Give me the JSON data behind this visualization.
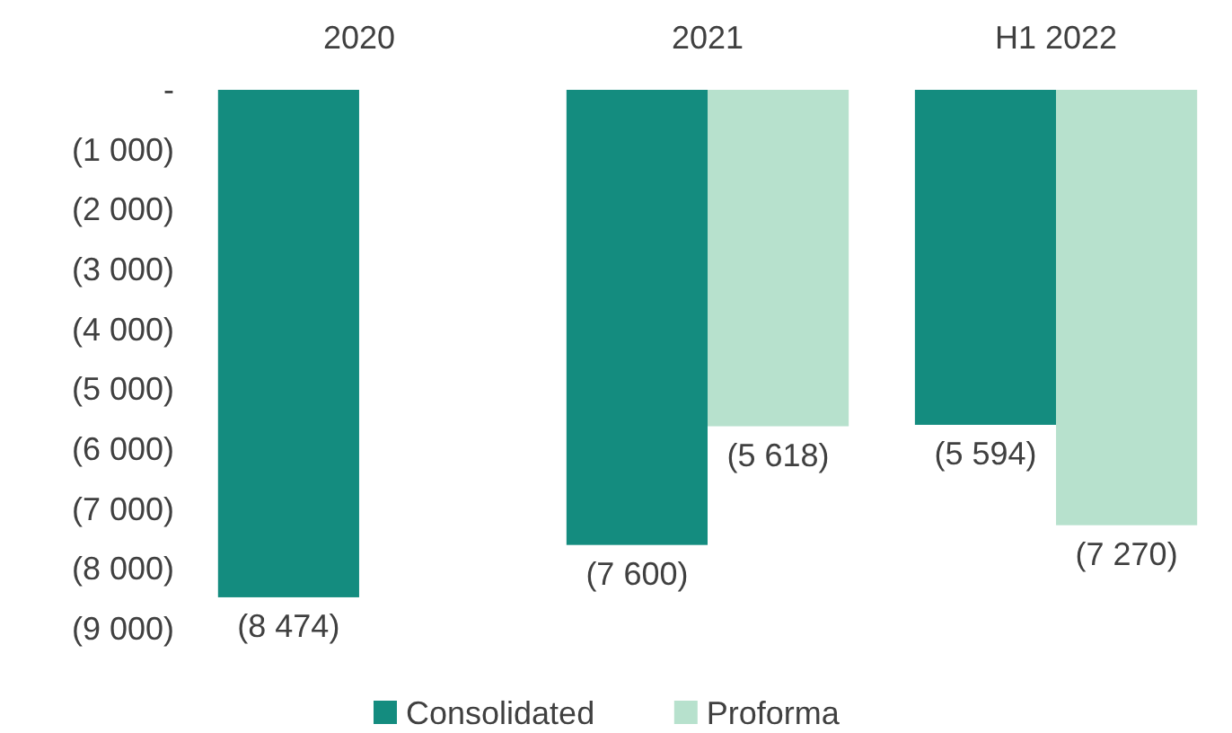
{
  "chart_data": {
    "type": "bar",
    "categories": [
      "2020",
      "2021",
      "H1 2022"
    ],
    "series": [
      {
        "name": "Consolidated",
        "color": "#148c7f",
        "values": [
          -8474,
          -7600,
          -5594
        ],
        "value_labels": [
          "(8 474)",
          "(7 600)",
          "(5 594)"
        ]
      },
      {
        "name": "Proforma",
        "color": "#b7e1cd",
        "values": [
          null,
          -5618,
          -7270
        ],
        "value_labels": [
          null,
          "(5 618)",
          "(7 270)"
        ]
      }
    ],
    "ylim": [
      -9000,
      0
    ],
    "yticks": [
      {
        "value": 0,
        "label": "-"
      },
      {
        "value": -1000,
        "label": "(1 000)"
      },
      {
        "value": -2000,
        "label": "(2 000)"
      },
      {
        "value": -3000,
        "label": "(3 000)"
      },
      {
        "value": -4000,
        "label": "(4 000)"
      },
      {
        "value": -5000,
        "label": "(5 000)"
      },
      {
        "value": -6000,
        "label": "(6 000)"
      },
      {
        "value": -7000,
        "label": "(7 000)"
      },
      {
        "value": -8000,
        "label": "(8 000)"
      },
      {
        "value": -9000,
        "label": "(9 000)"
      }
    ],
    "grid": false,
    "legend": "bottom"
  }
}
